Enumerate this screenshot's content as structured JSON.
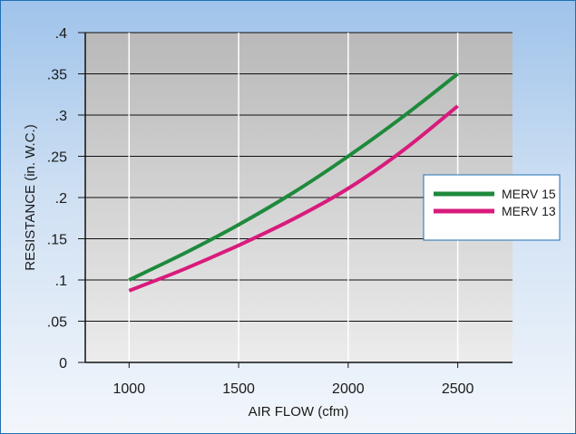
{
  "chart_data": {
    "type": "line",
    "title": "",
    "xlabel": "AIR FLOW (cfm)",
    "ylabel": "RESISTANCE (in. W.C.)",
    "xlim": [
      800,
      2750
    ],
    "ylim": [
      0,
      0.4
    ],
    "x_ticks": [
      1000,
      1500,
      2000,
      2500
    ],
    "x_tick_labels": [
      "1000",
      "1500",
      "2000",
      "2500"
    ],
    "y_ticks": [
      0,
      0.05,
      0.1,
      0.15,
      0.2,
      0.25,
      0.3,
      0.35,
      0.4
    ],
    "y_tick_labels": [
      "0",
      ".05",
      ".1",
      ".15",
      ".2",
      ".25",
      ".3",
      ".35",
      ".4"
    ],
    "grid": true,
    "legend_position": "right",
    "series": [
      {
        "name": "MERV 15",
        "color": "#1e8a3c",
        "x": [
          1000,
          1250,
          1500,
          1750,
          2000,
          2250,
          2500
        ],
        "y": [
          0.1,
          0.132,
          0.167,
          0.206,
          0.25,
          0.298,
          0.35
        ]
      },
      {
        "name": "MERV 13",
        "color": "#d81b7c",
        "x": [
          1000,
          1250,
          1500,
          1750,
          2000,
          2250,
          2500
        ],
        "y": [
          0.087,
          0.113,
          0.142,
          0.174,
          0.211,
          0.257,
          0.311
        ]
      }
    ]
  }
}
